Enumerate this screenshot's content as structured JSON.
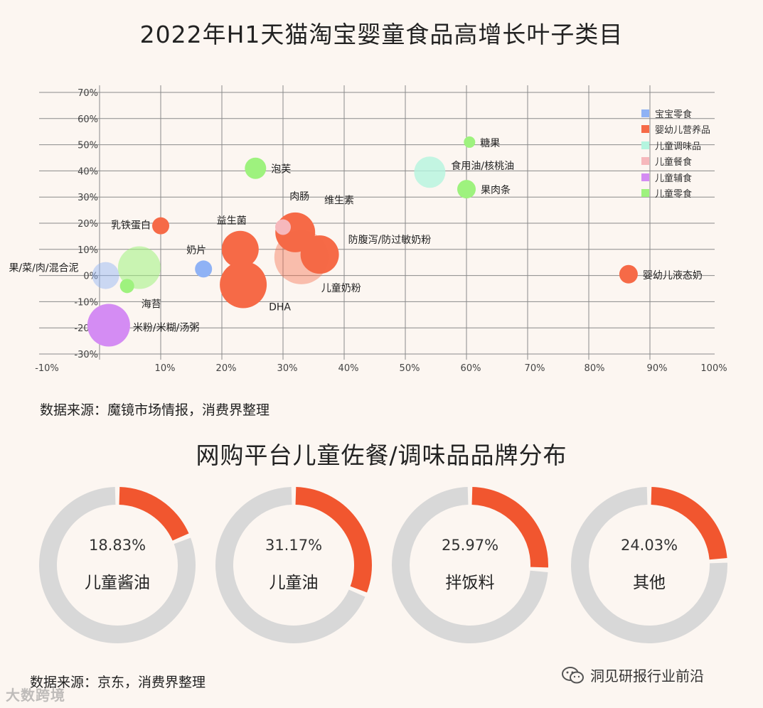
{
  "title1": "2022年H1天猫淘宝婴童食品高增长叶子类目",
  "title2": "网购平台儿童佐餐/调味品品牌分布",
  "source1": "数据来源：魔镜市场情报，消费界整理",
  "source2": "数据来源：京东，消费界整理",
  "footer_brand": "洞见研报行业前沿",
  "watermark": "大数跨境",
  "colors": {
    "background": "#fcf6f1",
    "donut_accent": "#f1562f",
    "donut_track": "#d8d8d8"
  },
  "chart_data": [
    {
      "type": "scatter",
      "subtype": "bubble",
      "title": "2022年H1天猫淘宝婴童食品高增长叶子类目",
      "xlim": [
        -0.1,
        1.0
      ],
      "ylim": [
        -0.3,
        0.7
      ],
      "x_ticks": [
        "-10%",
        "10%",
        "20%",
        "30%",
        "40%",
        "50%",
        "60%",
        "70%",
        "80%",
        "90%",
        "100%"
      ],
      "y_ticks": [
        "70%",
        "60%",
        "50%",
        "40%",
        "30%",
        "20%",
        "10%",
        "0%",
        "-10%",
        "-20%",
        "-30%"
      ],
      "grid": true,
      "legend_position": "top-right",
      "series": [
        {
          "name": "宝宝零食",
          "color": "#8fb2f5"
        },
        {
          "name": "婴幼儿营养品",
          "color": "#f66a47"
        },
        {
          "name": "儿童调味品",
          "color": "#b4f5df"
        },
        {
          "name": "儿童餐食",
          "color": "#f6b8bc"
        },
        {
          "name": "儿童辅食",
          "color": "#d48cf3"
        },
        {
          "name": "儿童零食",
          "color": "#9ef27e"
        }
      ],
      "points": [
        {
          "label": "糖果",
          "series": "儿童零食",
          "x": 0.605,
          "y": 0.51,
          "size": 8
        },
        {
          "label": "食用油/核桃油",
          "series": "儿童调味品",
          "x": 0.54,
          "y": 0.395,
          "size": 22,
          "opacity": 0.8
        },
        {
          "label": "果肉条",
          "series": "儿童零食",
          "x": 0.6,
          "y": 0.33,
          "size": 13
        },
        {
          "label": "泡芙",
          "series": "儿童零食",
          "x": 0.255,
          "y": 0.41,
          "size": 15
        },
        {
          "label": "肉肠",
          "series": "婴幼儿营养品",
          "x": 0.32,
          "y": 0.165,
          "size": 28
        },
        {
          "label": "维生素",
          "series": "儿童餐食",
          "x": 0.3,
          "y": 0.185,
          "size": 11
        },
        {
          "label": "防腹泻/防过敏奶粉",
          "series": "婴幼儿营养品",
          "x": 0.36,
          "y": 0.08,
          "size": 27
        },
        {
          "label": "儿童奶粉",
          "series": "婴幼儿营养品",
          "x": 0.33,
          "y": 0.07,
          "size": 38,
          "opacity": 0.4
        },
        {
          "label": "乳铁蛋白",
          "series": "婴幼儿营养品",
          "x": 0.1,
          "y": 0.19,
          "size": 12
        },
        {
          "label": "益生菌",
          "series": "婴幼儿营养品",
          "x": 0.23,
          "y": 0.1,
          "size": 26
        },
        {
          "label": "奶片",
          "series": "宝宝零食",
          "x": 0.17,
          "y": 0.025,
          "size": 12
        },
        {
          "label": "DHA",
          "series": "婴幼儿营养品",
          "x": 0.235,
          "y": -0.035,
          "size": 33
        },
        {
          "label": "果/菜/肉/混合泥",
          "series": "宝宝零食",
          "x": 0.01,
          "y": 0.0,
          "size": 19,
          "opacity": 0.45
        },
        {
          "label": "海苔",
          "series": "儿童零食",
          "x": 0.045,
          "y": -0.04,
          "size": 10
        },
        {
          "label": "米粉/米糊/汤粥",
          "series": "儿童辅食",
          "x": 0.015,
          "y": -0.19,
          "size": 30
        },
        {
          "label": "婴幼儿液态奶",
          "series": "婴幼儿营养品",
          "x": 0.865,
          "y": 0.005,
          "size": 13
        },
        {
          "label": "",
          "series": "儿童零食",
          "x": 0.065,
          "y": 0.03,
          "size": 30,
          "opacity": 0.55
        }
      ]
    },
    {
      "type": "pie",
      "subtype": "donut",
      "title": "网购平台儿童佐餐/调味品品牌分布",
      "items": [
        {
          "label": "儿童酱油",
          "value": 18.83,
          "value_text": "18.83%"
        },
        {
          "label": "儿童油",
          "value": 31.17,
          "value_text": "31.17%"
        },
        {
          "label": "拌饭料",
          "value": 25.97,
          "value_text": "25.97%"
        },
        {
          "label": "其他",
          "value": 24.03,
          "value_text": "24.03%"
        }
      ]
    }
  ]
}
